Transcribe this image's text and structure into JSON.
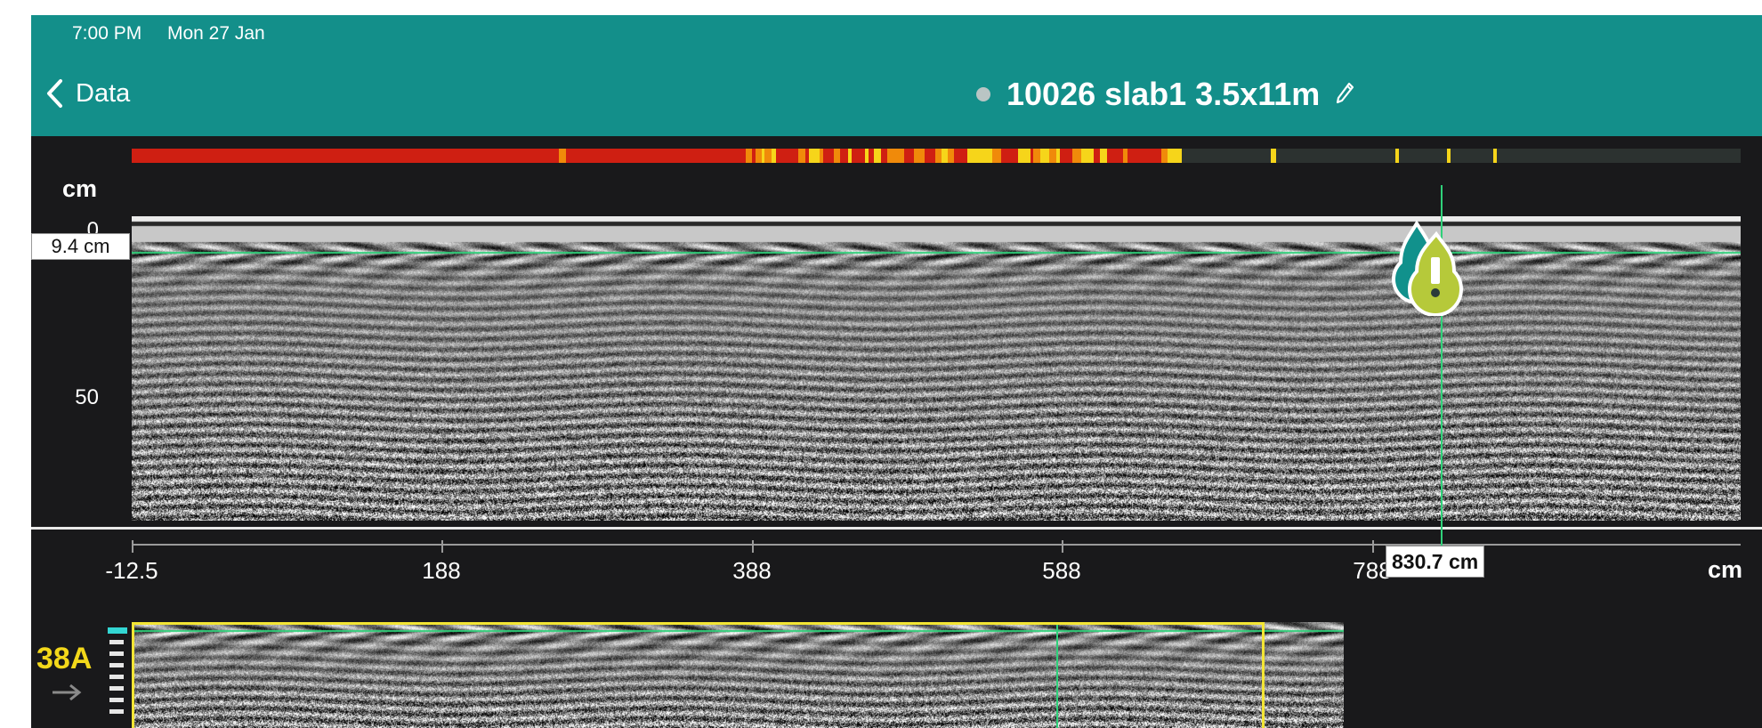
{
  "status_bar": {
    "time": "7:00 PM",
    "date": "Mon 27 Jan"
  },
  "nav": {
    "back_label": "Data",
    "back_icon": "chevron-left-icon",
    "edit_icon": "pencil-icon"
  },
  "scan": {
    "title": "10026 slab1 3.5x11m",
    "status_dot_color": "#b9c5c4"
  },
  "depth_axis": {
    "unit": "cm",
    "ticks": [
      "0",
      "50"
    ],
    "surface_depth_label": "9.4 cm"
  },
  "distance_axis": {
    "unit": "cm",
    "ticks": [
      "-12.5",
      "188",
      "388",
      "588",
      "788"
    ],
    "cursor_label": "830.7 cm"
  },
  "quality_bar": {
    "colors": {
      "good": "#cf1f12",
      "medium": "#f08a0a",
      "low": "#f6d51a",
      "none": "#2c3230"
    }
  },
  "overview": {
    "channel": "38A",
    "direction_icon": "arrow-right-icon"
  },
  "colors": {
    "header": "#138f8a",
    "background": "#19191b",
    "surface_line": "#2fd17a",
    "viewport_frame": "#f3e534",
    "marker_teal": "#11918c",
    "marker_lime": "#b6c93a"
  }
}
